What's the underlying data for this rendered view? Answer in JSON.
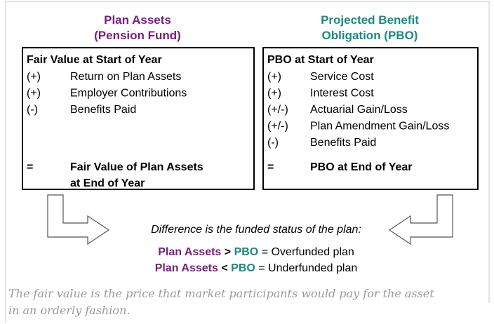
{
  "left_panel": {
    "heading": [
      "Plan Assets",
      "(Pension Fund)"
    ],
    "title": "Fair Value at Start of Year",
    "items": [
      {
        "sign": "(+)",
        "label": "Return on Plan Assets"
      },
      {
        "sign": "(+)",
        "label": "Employer Contributions"
      },
      {
        "sign": "(-)",
        "label": "Benefits Paid"
      }
    ],
    "total": {
      "sign": "=",
      "label": [
        "Fair Value of Plan Assets",
        "at End of Year"
      ]
    }
  },
  "right_panel": {
    "heading": [
      "Projected Benefit",
      "Obligation (PBO)"
    ],
    "title": "PBO at Start of Year",
    "items": [
      {
        "sign": "(+)",
        "label": "Service Cost"
      },
      {
        "sign": "(+)",
        "label": "Interest Cost"
      },
      {
        "sign": "(+/-)",
        "label": "Actuarial Gain/Loss"
      },
      {
        "sign": "(+/-)",
        "label": "Plan Amendment Gain/Loss"
      },
      {
        "sign": "(-)",
        "label": "Benefits Paid"
      }
    ],
    "total": {
      "sign": "=",
      "label": [
        "PBO at End of Year"
      ]
    }
  },
  "difference_text": "Difference is the funded status of the plan:",
  "rules": [
    {
      "left": "Plan Assets",
      "operator": ">",
      "right": "PBO",
      "result": "= Overfunded plan"
    },
    {
      "left": "Plan Assets",
      "operator": "<",
      "right": "PBO",
      "result": "= Underfunded plan"
    }
  ],
  "footnote": [
    "The fair value is the price that market participants would pay for the asset",
    "in an orderly fashion."
  ]
}
